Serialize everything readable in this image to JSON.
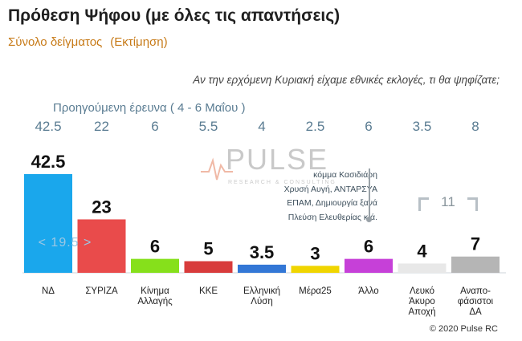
{
  "title": "Πρόθεση Ψήφου (με όλες τις απαντήσεις)",
  "subtitle": "Σύνολο δείγματος",
  "subtitle_note": "(Εκτίμηση)",
  "question": "Αν την ερχόμενη Κυριακή είχαμε εθνικές εκλογές, τι θα ψηφίζατε;",
  "previous_survey_label": "Προηγούμενη έρευνα  ( 4 - 6 Μαΐου )",
  "watermark": {
    "text": "PULSE",
    "subtext": "RESEARCH & CONSULTING"
  },
  "annotation_lines": [
    "κόμμα Κασιδιάρη",
    "Χρυσή Αυγή, ΑΝΤΑΡΣΥΑ",
    "ΕΠΑΜ, Δημιουργία ξανά",
    "Πλεύση Ελευθερίας  κ.ά."
  ],
  "bracket_total": "11",
  "nd_inner_label": "< 19.5 >",
  "copyright": "© 2020 Pulse RC",
  "chart_data": {
    "type": "bar",
    "title": "Πρόθεση Ψήφου (με όλες τις απαντήσεις)",
    "categories": [
      "ΝΔ",
      "ΣΥΡΙΖΑ",
      "Κίνημα Αλλαγής",
      "ΚΚΕ",
      "Ελληνική Λύση",
      "Μέρα25",
      "Άλλο",
      "Λευκό Άκυρο Αποχή",
      "Αναπο-φάσιστοι ΔΑ"
    ],
    "category_lines": [
      [
        "ΝΔ"
      ],
      [
        "ΣΥΡΙΖΑ"
      ],
      [
        "Κίνημα",
        "Αλλαγής"
      ],
      [
        "ΚΚΕ"
      ],
      [
        "Ελληνική",
        "Λύση"
      ],
      [
        "Μέρα25"
      ],
      [
        "Άλλο"
      ],
      [
        "Λευκό",
        "Άκυρο",
        "Αποχή"
      ],
      [
        "Αναπο-",
        "φάσιστοι",
        "ΔΑ"
      ]
    ],
    "values": [
      42.5,
      23,
      6,
      5,
      3.5,
      3,
      6,
      4,
      7
    ],
    "value_labels": [
      "42.5",
      "23",
      "6",
      "5",
      "3.5",
      "3",
      "6",
      "4",
      "7"
    ],
    "previous_values": [
      42.5,
      22,
      6,
      5.5,
      4,
      2.5,
      6,
      3.5,
      8
    ],
    "previous_labels": [
      "42.5",
      "22",
      "6",
      "5.5",
      "4",
      "2.5",
      "6",
      "3.5",
      "8"
    ],
    "colors": [
      "#1aa7ec",
      "#e94b4b",
      "#86e01b",
      "#d83b3b",
      "#3377d6",
      "#f0d500",
      "#c640d8",
      "#e8e8e8",
      "#b5b5b5"
    ],
    "ylim": [
      0,
      42.5
    ],
    "grid": false
  }
}
